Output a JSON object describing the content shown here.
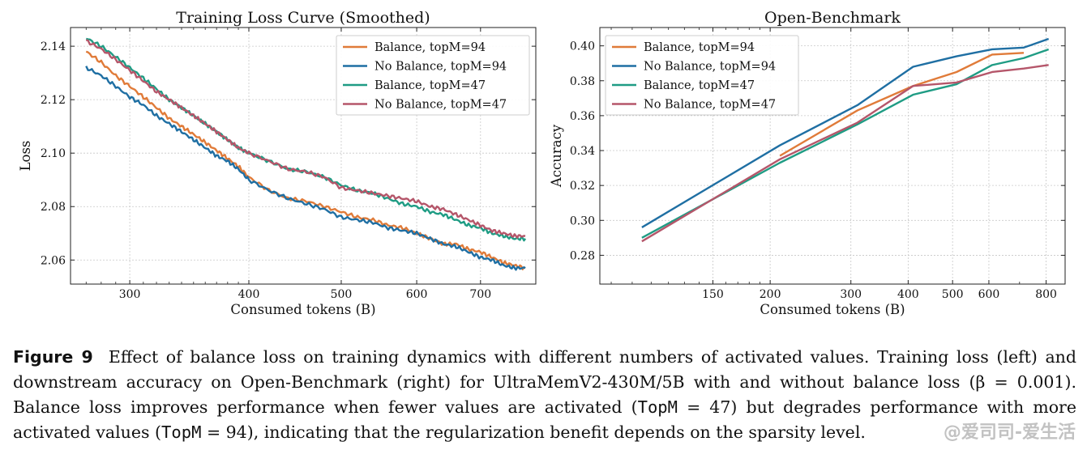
{
  "chart_data": [
    {
      "type": "line",
      "title": "Training Loss Curve (Smoothed)",
      "xlabel": "Consumed tokens (B)",
      "ylabel": "Loss",
      "xscale": "log",
      "xlim": [
        260,
        800
      ],
      "ylim": [
        2.051,
        2.147
      ],
      "xticks": [
        300,
        400,
        500,
        600,
        700
      ],
      "yticks": [
        2.06,
        2.08,
        2.1,
        2.12,
        2.14
      ],
      "grid": true,
      "legend": "top-right",
      "series": [
        {
          "name": "Balance, topM=94",
          "color": "#e07b39",
          "x": [
            270,
            280,
            290,
            300,
            310,
            320,
            330,
            340,
            350,
            360,
            370,
            380,
            390,
            400,
            420,
            440,
            460,
            480,
            500,
            520,
            540,
            560,
            580,
            600,
            620,
            640,
            660,
            680,
            700,
            720,
            740,
            760,
            780
          ],
          "y": [
            2.138,
            2.134,
            2.129,
            2.125,
            2.121,
            2.117,
            2.113,
            2.11,
            2.107,
            2.104,
            2.101,
            2.098,
            2.095,
            2.091,
            2.086,
            2.083,
            2.082,
            2.08,
            2.078,
            2.076,
            2.075,
            2.073,
            2.072,
            2.07,
            2.068,
            2.066,
            2.066,
            2.064,
            2.063,
            2.061,
            2.059,
            2.058,
            2.057
          ]
        },
        {
          "name": "No Balance, topM=94",
          "color": "#1f6fa3",
          "x": [
            270,
            280,
            290,
            300,
            310,
            320,
            330,
            340,
            350,
            360,
            370,
            380,
            390,
            400,
            420,
            440,
            460,
            480,
            500,
            520,
            540,
            560,
            580,
            600,
            620,
            640,
            660,
            680,
            700,
            720,
            740,
            760,
            780
          ],
          "y": [
            2.132,
            2.129,
            2.125,
            2.121,
            2.118,
            2.114,
            2.111,
            2.108,
            2.105,
            2.102,
            2.099,
            2.097,
            2.094,
            2.09,
            2.086,
            2.083,
            2.081,
            2.079,
            2.076,
            2.075,
            2.074,
            2.072,
            2.071,
            2.07,
            2.068,
            2.066,
            2.065,
            2.063,
            2.061,
            2.06,
            2.058,
            2.057,
            2.057
          ]
        },
        {
          "name": "Balance, topM=47",
          "color": "#1f9c84",
          "x": [
            270,
            280,
            290,
            300,
            310,
            320,
            330,
            340,
            350,
            360,
            370,
            380,
            390,
            400,
            420,
            440,
            460,
            480,
            500,
            520,
            540,
            560,
            580,
            600,
            620,
            640,
            660,
            680,
            700,
            720,
            740,
            760,
            780
          ],
          "y": [
            2.143,
            2.14,
            2.136,
            2.132,
            2.128,
            2.124,
            2.12,
            2.117,
            2.114,
            2.111,
            2.108,
            2.105,
            2.102,
            2.1,
            2.097,
            2.094,
            2.093,
            2.091,
            2.088,
            2.086,
            2.085,
            2.083,
            2.081,
            2.08,
            2.078,
            2.077,
            2.075,
            2.073,
            2.072,
            2.07,
            2.069,
            2.068,
            2.068
          ]
        },
        {
          "name": "No Balance, topM=47",
          "color": "#b5566a",
          "x": [
            270,
            280,
            290,
            300,
            310,
            320,
            330,
            340,
            350,
            360,
            370,
            380,
            390,
            400,
            420,
            440,
            460,
            480,
            500,
            520,
            540,
            560,
            580,
            600,
            620,
            640,
            660,
            680,
            700,
            720,
            740,
            760,
            780
          ],
          "y": [
            2.142,
            2.139,
            2.135,
            2.131,
            2.127,
            2.123,
            2.12,
            2.117,
            2.114,
            2.111,
            2.108,
            2.105,
            2.102,
            2.1,
            2.097,
            2.094,
            2.093,
            2.091,
            2.087,
            2.086,
            2.085,
            2.084,
            2.083,
            2.082,
            2.08,
            2.079,
            2.077,
            2.075,
            2.073,
            2.071,
            2.07,
            2.069,
            2.069
          ]
        }
      ]
    },
    {
      "type": "line",
      "title": "Open-Benchmark",
      "xlabel": "Consumed tokens (B)",
      "ylabel": "Accuracy",
      "xscale": "log",
      "xlim": [
        85,
        880
      ],
      "ylim": [
        0.2635,
        0.4105
      ],
      "xticks": [
        150,
        200,
        300,
        400,
        500,
        600,
        800
      ],
      "yticks": [
        0.28,
        0.3,
        0.32,
        0.34,
        0.36,
        0.38,
        0.4
      ],
      "grid": true,
      "legend": "top-left",
      "series": [
        {
          "name": "Balance, topM=94",
          "color": "#e07b39",
          "x": [
            210,
            310,
            410,
            510,
            610,
            715
          ],
          "y": [
            0.337,
            0.363,
            0.377,
            0.385,
            0.395,
            0.396
          ]
        },
        {
          "name": "No Balance, topM=94",
          "color": "#1f6fa3",
          "x": [
            105,
            210,
            310,
            410,
            510,
            610,
            715,
            810
          ],
          "y": [
            0.296,
            0.343,
            0.366,
            0.388,
            0.394,
            0.398,
            0.399,
            0.404
          ]
        },
        {
          "name": "Balance, topM=47",
          "color": "#1f9c84",
          "x": [
            105,
            210,
            310,
            410,
            510,
            610,
            715,
            810
          ],
          "y": [
            0.29,
            0.333,
            0.355,
            0.372,
            0.378,
            0.389,
            0.393,
            0.398
          ]
        },
        {
          "name": "No Balance, topM=47",
          "color": "#b5566a",
          "x": [
            105,
            210,
            310,
            410,
            510,
            610,
            715,
            810
          ],
          "y": [
            0.288,
            0.335,
            0.356,
            0.377,
            0.379,
            0.385,
            0.387,
            0.389
          ]
        }
      ]
    }
  ],
  "caption": {
    "label": "Figure 9",
    "parts": [
      {
        "t": "  Effect of balance loss on training dynamics with different numbers of activated values. Training loss (left) and downstream accuracy on Open-Benchmark (right) for UltraMemV2-430M/5B with and without balance loss (β = 0.001). Balance loss improves performance when fewer values are activated (",
        "mono": false
      },
      {
        "t": "TopM",
        "mono": true
      },
      {
        "t": " = 47) but degrades performance with more activated values (",
        "mono": false
      },
      {
        "t": "TopM",
        "mono": true
      },
      {
        "t": " = 94), indicating that the regularization benefit depends on the sparsity level.",
        "mono": false
      }
    ]
  },
  "watermark": "@爱司司-爱生活"
}
